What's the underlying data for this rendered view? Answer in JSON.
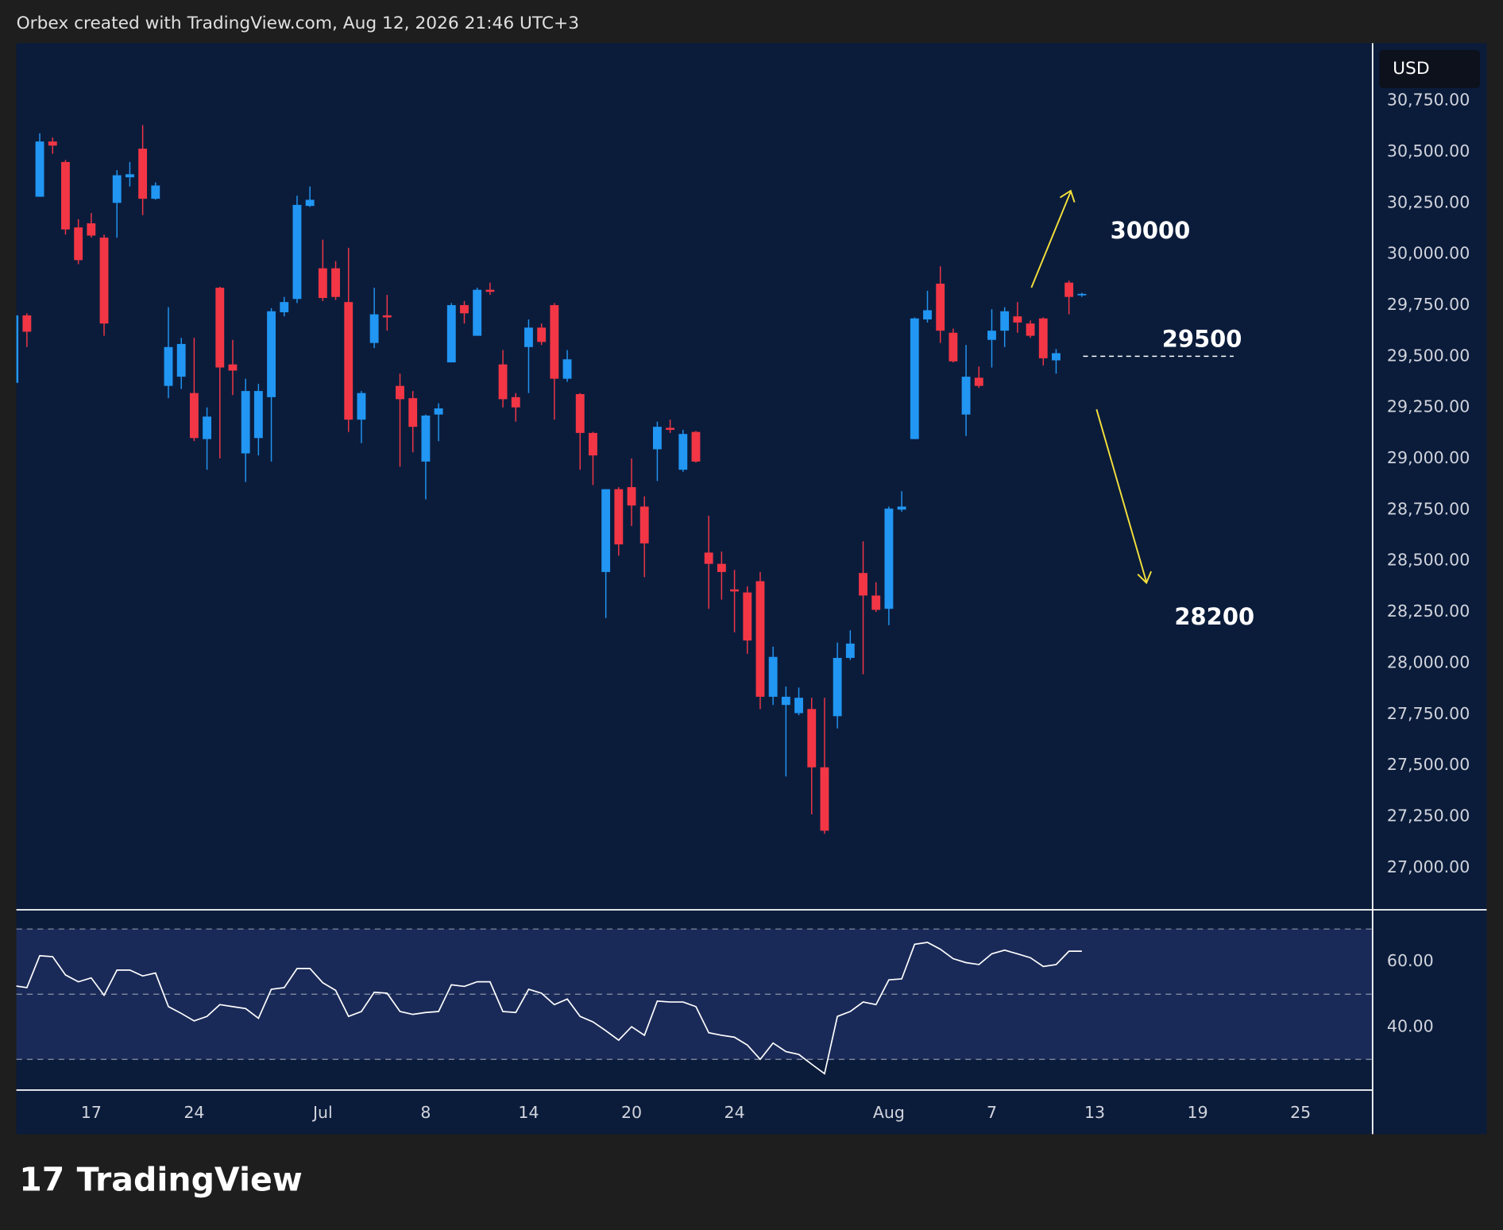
{
  "header": "Orbex created with TradingView.com, Aug 12, 2026 21:46 UTC+3",
  "footer": "TradingView",
  "chart_data": [
    {
      "type": "candlestick",
      "open": [
        29370,
        29700,
        30280,
        30550,
        30450,
        30130,
        30150,
        30080,
        30250,
        30375,
        30515,
        30270,
        29355,
        29400,
        29320,
        29095,
        29835,
        29460,
        29025,
        29100,
        29300,
        29715,
        29780,
        30235,
        29930,
        29930,
        29765,
        29190,
        29565,
        29700,
        29355,
        29295,
        28985,
        29215,
        29470,
        29750,
        29600,
        29825,
        29460,
        29300,
        29545,
        29640,
        29750,
        29390,
        29315,
        29125,
        28445,
        28850,
        28860,
        28765,
        29045,
        29150,
        28945,
        29130,
        28540,
        28485,
        28360,
        28345,
        28400,
        27835,
        27795,
        27755,
        27775,
        27490,
        27740,
        28025,
        28440,
        28330,
        28265,
        28750,
        29095,
        29680,
        29855,
        29615,
        29215,
        29395,
        29580,
        29625,
        29695,
        29660,
        29685,
        29480,
        29860,
        29800
      ],
      "high": [
        29720,
        29710,
        30590,
        30570,
        30460,
        30170,
        30200,
        30095,
        30410,
        30450,
        30630,
        30350,
        29740,
        29590,
        29590,
        29250,
        29840,
        29580,
        29390,
        29365,
        29735,
        29790,
        30285,
        30330,
        30070,
        29965,
        30030,
        29330,
        29835,
        29800,
        29415,
        29330,
        29215,
        29270,
        29760,
        29770,
        29835,
        29860,
        29530,
        29320,
        29680,
        29660,
        29760,
        29530,
        29320,
        29130,
        28850,
        28860,
        29000,
        28815,
        29180,
        29190,
        29140,
        29135,
        28720,
        28545,
        28455,
        28375,
        28445,
        28080,
        27885,
        27880,
        27830,
        27830,
        28100,
        28160,
        28595,
        28395,
        28765,
        28840,
        29690,
        29820,
        29940,
        29635,
        29555,
        29450,
        29730,
        29740,
        29765,
        29675,
        29690,
        29535,
        29870,
        29810
      ],
      "low": [
        29360,
        29545,
        30280,
        30490,
        30095,
        29950,
        30080,
        29600,
        30080,
        30330,
        30190,
        30265,
        29295,
        29340,
        29085,
        28945,
        29000,
        29310,
        28885,
        29015,
        28985,
        29695,
        29760,
        30230,
        29770,
        29775,
        29130,
        29075,
        29540,
        29625,
        28960,
        29030,
        28800,
        29085,
        29470,
        29660,
        29600,
        29800,
        29250,
        29180,
        29320,
        29555,
        29190,
        29375,
        28945,
        28870,
        28220,
        28525,
        28670,
        28420,
        28890,
        29125,
        28935,
        28980,
        28265,
        28310,
        28150,
        28045,
        27775,
        27795,
        27445,
        27745,
        27260,
        27165,
        27680,
        28015,
        27945,
        28250,
        28185,
        28740,
        29095,
        29665,
        29565,
        29470,
        29110,
        29345,
        29445,
        29545,
        29615,
        29590,
        29455,
        29415,
        29705,
        29790
      ],
      "close": [
        29700,
        29620,
        30550,
        30530,
        30120,
        29970,
        30090,
        29660,
        30385,
        30390,
        30270,
        30335,
        29545,
        29560,
        29100,
        29205,
        29445,
        29430,
        29330,
        29330,
        29720,
        29765,
        30240,
        30265,
        29785,
        29790,
        29190,
        29320,
        29705,
        29690,
        29290,
        29155,
        29210,
        29245,
        29750,
        29710,
        29825,
        29815,
        29290,
        29250,
        29640,
        29570,
        29390,
        29485,
        29125,
        29015,
        28850,
        28580,
        28770,
        28585,
        29155,
        29140,
        29120,
        28985,
        28485,
        28445,
        28350,
        28110,
        27835,
        28030,
        27835,
        27830,
        27490,
        27180,
        28025,
        28095,
        28330,
        28260,
        28755,
        28765,
        29685,
        29725,
        29625,
        29475,
        29400,
        29355,
        29625,
        29720,
        29665,
        29600,
        29490,
        29515,
        29790,
        29805
      ],
      "up_color": "#2196f3",
      "down_color": "#f23645",
      "xlim": [
        0.18,
        105.6
      ],
      "xticks": [
        {
          "value": 6,
          "label": "17"
        },
        {
          "value": 14,
          "label": "24"
        },
        {
          "value": 24,
          "label": "Jul"
        },
        {
          "value": 32,
          "label": "8"
        },
        {
          "value": 40,
          "label": "14"
        },
        {
          "value": 48,
          "label": "20"
        },
        {
          "value": 56,
          "label": "24"
        },
        {
          "value": 68,
          "label": "Aug"
        },
        {
          "value": 76,
          "label": "7"
        },
        {
          "value": 84,
          "label": "13"
        },
        {
          "value": 92,
          "label": "19"
        },
        {
          "value": 100,
          "label": "25"
        }
      ],
      "ylim": [
        26798,
        31031
      ],
      "yticks": [
        {
          "value": 27000,
          "label": "27,000.00"
        },
        {
          "value": 27250,
          "label": "27,250.00"
        },
        {
          "value": 27500,
          "label": "27,500.00"
        },
        {
          "value": 27750,
          "label": "27,750.00"
        },
        {
          "value": 28000,
          "label": "28,000.00"
        },
        {
          "value": 28250,
          "label": "28,250.00"
        },
        {
          "value": 28500,
          "label": "28,500.00"
        },
        {
          "value": 28750,
          "label": "28,750.00"
        },
        {
          "value": 29000,
          "label": "29,000.00"
        },
        {
          "value": 29250,
          "label": "29,250.00"
        },
        {
          "value": 29500,
          "label": "29,500.00"
        },
        {
          "value": 29750,
          "label": "29,750.00"
        },
        {
          "value": 30000,
          "label": "30,000.00"
        },
        {
          "value": 30250,
          "label": "30,250.00"
        },
        {
          "value": 30500,
          "label": "30,500.00"
        },
        {
          "value": 30750,
          "label": "30,750.00"
        }
      ],
      "currency": "USD",
      "levels": [
        30000,
        29500,
        28200
      ]
    },
    {
      "type": "line",
      "values": [
        52.6,
        52,
        61.8,
        61.5,
        55.9,
        53.8,
        55,
        49.7,
        57.4,
        57.4,
        55.6,
        56.5,
        46.2,
        44.1,
        41.8,
        43.2,
        46.8,
        46.2,
        45.6,
        42.6,
        51.5,
        52,
        57.9,
        57.9,
        53.5,
        51.2,
        43.2,
        44.7,
        50.6,
        50.3,
        44.7,
        43.8,
        44.4,
        44.7,
        52.9,
        52.4,
        53.8,
        53.8,
        44.7,
        44.4,
        51.5,
        50.3,
        46.8,
        48.5,
        43.2,
        41.5,
        38.8,
        35.9,
        40,
        37.4,
        47.9,
        47.6,
        47.6,
        46.2,
        38.2,
        37.4,
        36.8,
        34.4,
        30,
        35,
        32.4,
        31.5,
        28.5,
        25.6,
        43.2,
        44.7,
        47.6,
        46.8,
        54.4,
        54.7,
        65.3,
        65.9,
        63.8,
        60.9,
        59.7,
        59.1,
        62.4,
        63.5,
        62.4,
        61.2,
        58.5,
        59.1,
        63.2,
        63.2
      ],
      "color": "#ffffff",
      "ylim": [
        20.6,
        75.6
      ],
      "yticks": [
        {
          "value": 60,
          "label": "60.00"
        },
        {
          "value": 40,
          "label": "40.00"
        }
      ],
      "bands": [
        70,
        50,
        30
      ]
    }
  ]
}
